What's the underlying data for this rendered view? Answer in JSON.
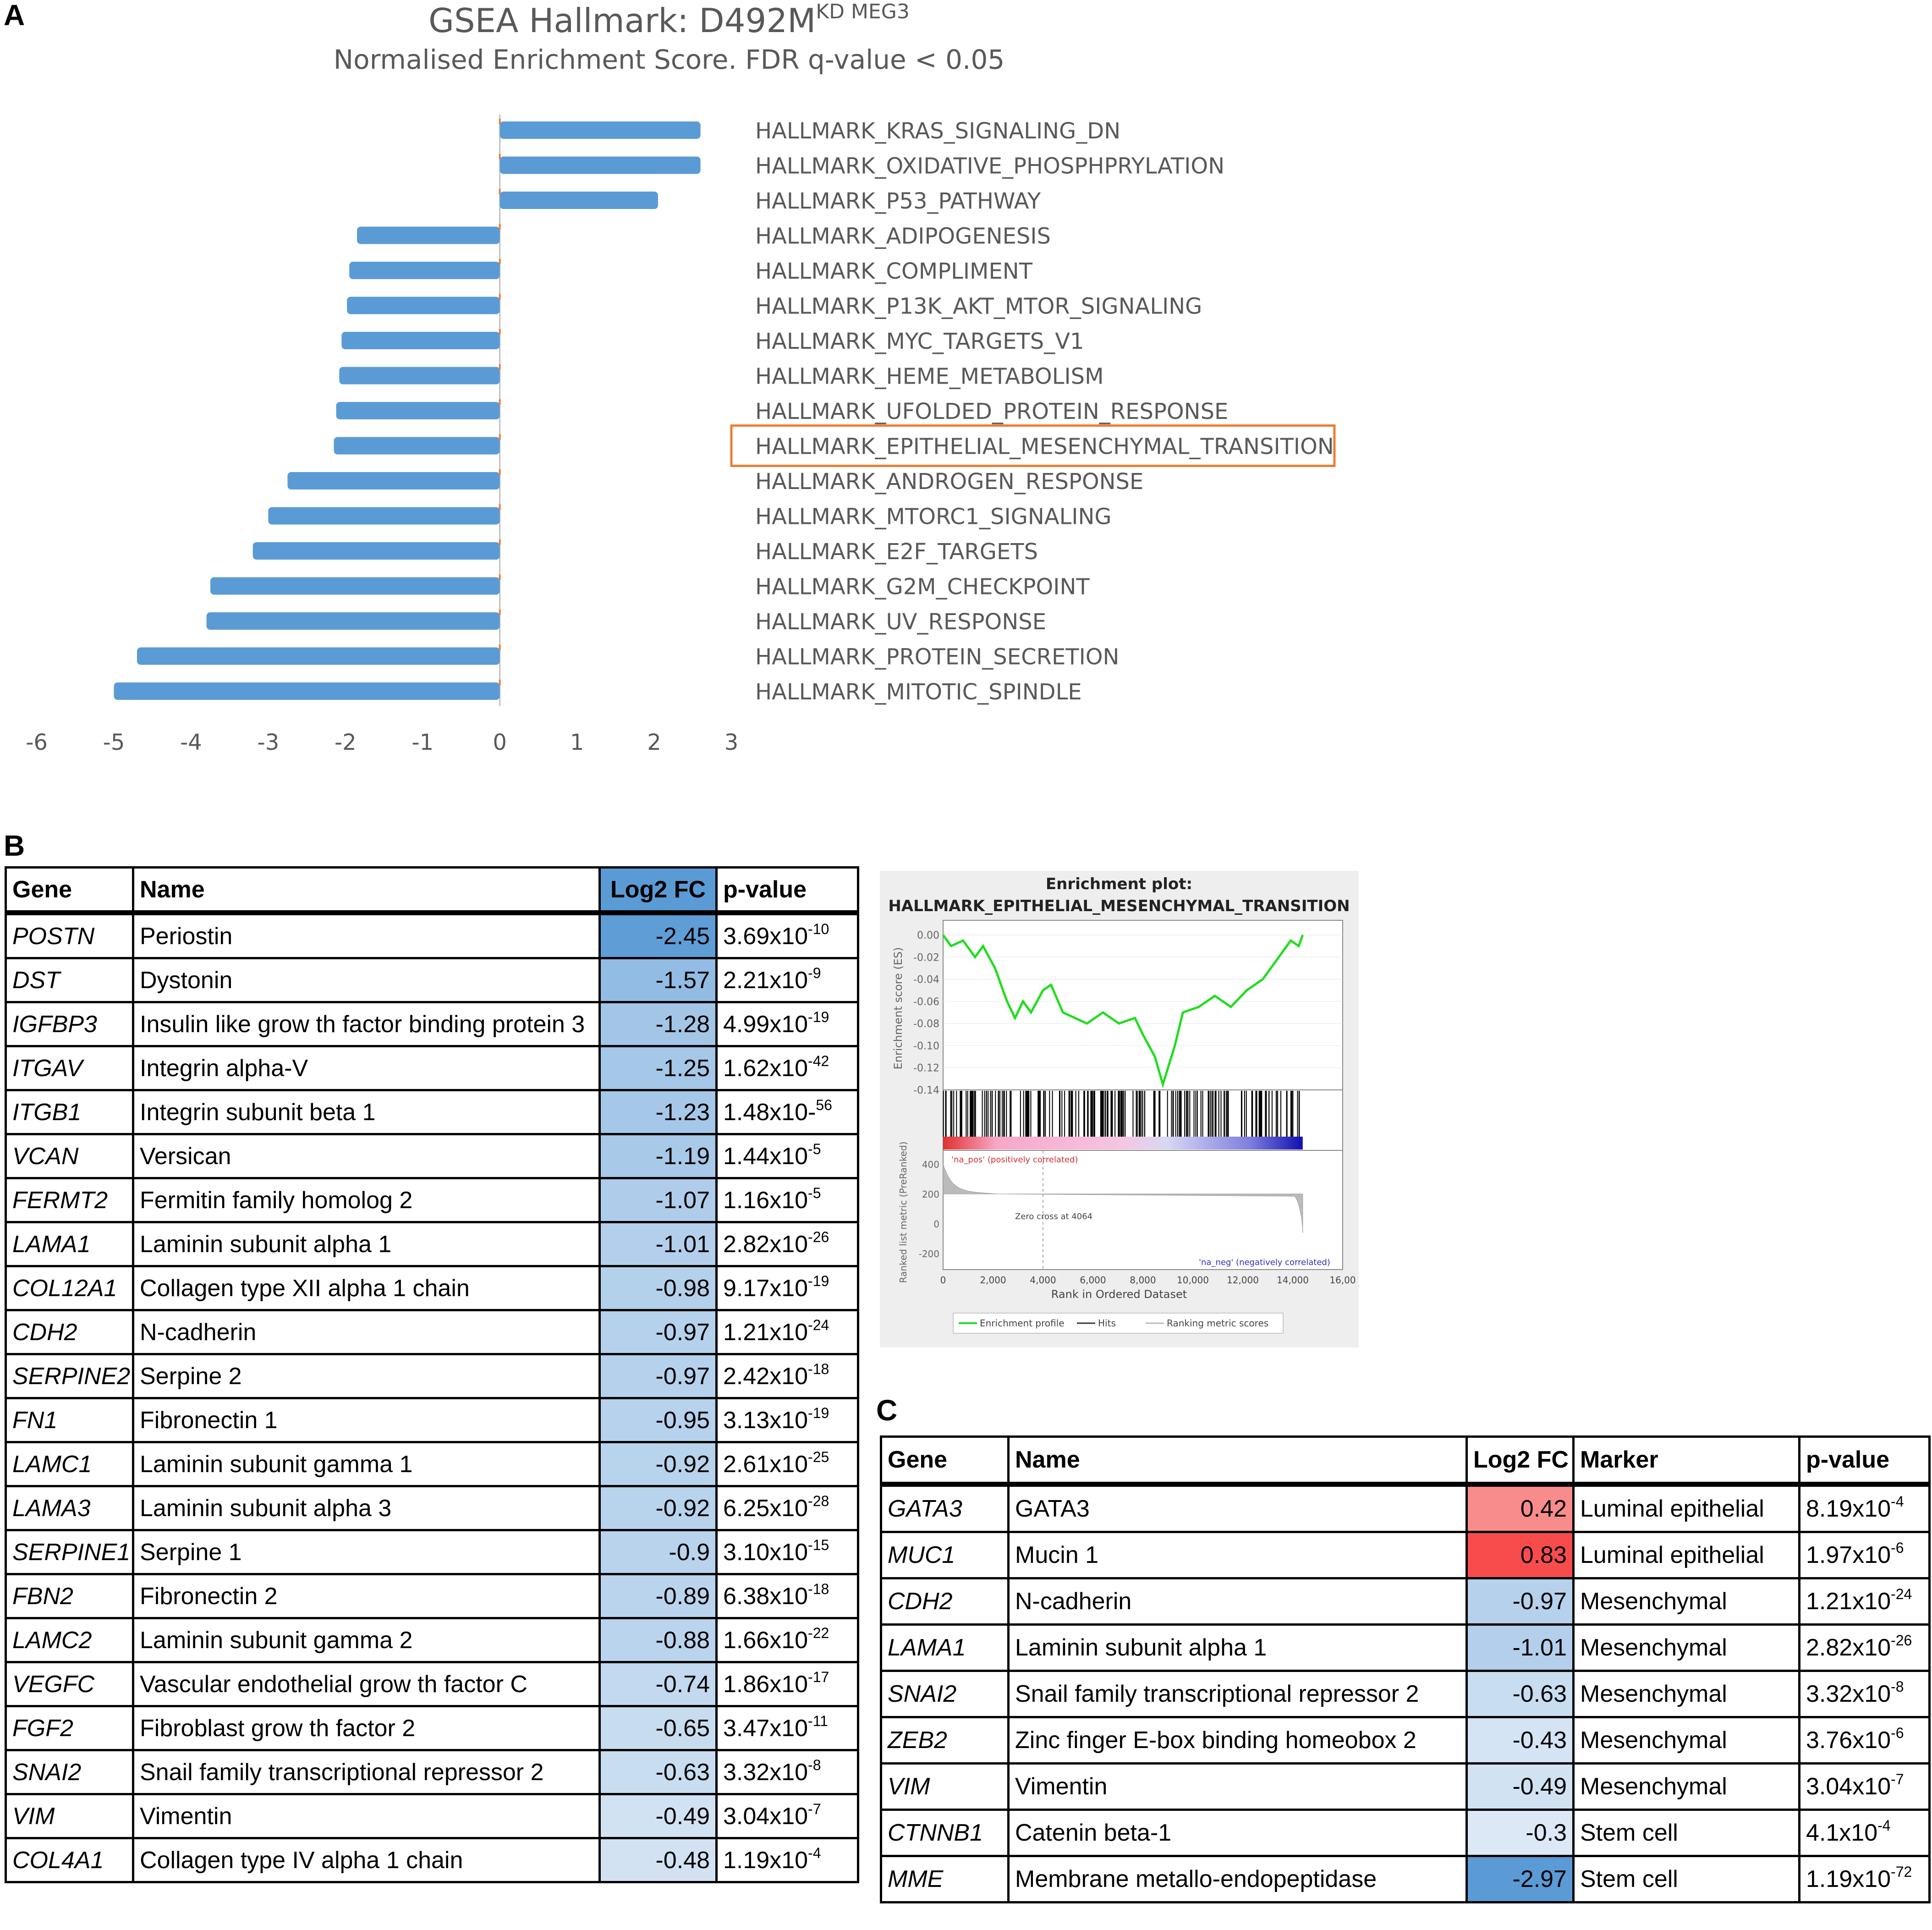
{
  "panel_a": {
    "letter": "A",
    "title_main": "GSEA Hallmark: D492M",
    "title_sup": "KD MEG3",
    "subtitle": "Normalised Enrichment Score. FDR q-value < 0.05",
    "highlighted_item": "HALLMARK_EPITHELIAL_MESENCHYMAL_TRANSITION",
    "colors": {
      "bar": "#5b9bd5",
      "highlight_box": "#ed7d31",
      "zero_tick": "#ed7d31",
      "text": "#595959"
    }
  },
  "chart_data": {
    "type": "bar",
    "orientation": "horizontal",
    "title": "GSEA Hallmark: D492M KD MEG3",
    "subtitle": "Normalised Enrichment Score. FDR q-value < 0.05",
    "categories": [
      "HALLMARK_KRAS_SIGNALING_DN",
      "HALLMARK_OXIDATIVE_PHOSPHPRYLATION",
      "HALLMARK_P53_PATHWAY",
      "HALLMARK_ADIPOGENESIS",
      "HALLMARK_COMPLIMENT",
      "HALLMARK_P13K_AKT_MTOR_SIGNALING",
      "HALLMARK_MYC_TARGETS_V1",
      "HALLMARK_HEME_METABOLISM",
      "HALLMARK_UFOLDED_PROTEIN_RESPONSE",
      "HALLMARK_EPITHELIAL_MESENCHYMAL_TRANSITION",
      "HALLMARK_ANDROGEN_RESPONSE",
      "HALLMARK_MTORC1_SIGNALING",
      "HALLMARK_E2F_TARGETS",
      "HALLMARK_G2M_CHECKPOINT",
      "HALLMARK_UV_RESPONSE",
      "HALLMARK_PROTEIN_SECRETION",
      "HALLMARK_MITOTIC_SPINDLE"
    ],
    "values": [
      2.6,
      2.6,
      2.05,
      -1.85,
      -1.95,
      -1.98,
      -2.05,
      -2.08,
      -2.12,
      -2.15,
      -2.75,
      -3.0,
      -3.2,
      -3.75,
      -3.8,
      -4.7,
      -5.0
    ],
    "xlim": [
      -6,
      3
    ],
    "xticks": [
      "-6",
      "-5",
      "-4",
      "-3",
      "-2",
      "-1",
      "0",
      "1",
      "2",
      "3"
    ],
    "grid": false,
    "legend": "none"
  },
  "panel_b": {
    "letter": "B",
    "headers": [
      "Gene",
      "Name",
      "Log2 FC",
      "p-value"
    ],
    "rows": [
      {
        "gene": "POSTN",
        "name": "Periostin",
        "fc": "-2.45",
        "p_base": "3.69x10",
        "p_exp": "-10"
      },
      {
        "gene": "DST",
        "name": "Dystonin",
        "fc": "-1.57",
        "p_base": "2.21x10",
        "p_exp": "-9"
      },
      {
        "gene": "IGFBP3",
        "name": "Insulin like grow th factor binding protein 3",
        "fc": "-1.28",
        "p_base": "4.99x10",
        "p_exp": "-19"
      },
      {
        "gene": "ITGAV",
        "name": "Integrin alpha-V",
        "fc": "-1.25",
        "p_base": "1.62x10",
        "p_exp": "-42"
      },
      {
        "gene": "ITGB1",
        "name": "Integrin subunit beta 1",
        "fc": "-1.23",
        "p_base": "1.48x10-",
        "p_exp": "56"
      },
      {
        "gene": "VCAN",
        "name": "Versican",
        "fc": "-1.19",
        "p_base": "1.44x10",
        "p_exp": "-5"
      },
      {
        "gene": "FERMT2",
        "name": "Fermitin family homolog 2",
        "fc": "-1.07",
        "p_base": "1.16x10",
        "p_exp": "-5"
      },
      {
        "gene": "LAMA1",
        "name": "Laminin subunit alpha 1",
        "fc": "-1.01",
        "p_base": "2.82x10",
        "p_exp": "-26"
      },
      {
        "gene": "COL12A1",
        "name": "Collagen type XII alpha 1 chain",
        "fc": "-0.98",
        "p_base": "9.17x10",
        "p_exp": "-19"
      },
      {
        "gene": "CDH2",
        "name": "N-cadherin",
        "fc": "-0.97",
        "p_base": "1.21x10",
        "p_exp": "-24"
      },
      {
        "gene": "SERPINE2",
        "name": "Serpine 2",
        "fc": "-0.97",
        "p_base": "2.42x10",
        "p_exp": "-18"
      },
      {
        "gene": "FN1",
        "name": "Fibronectin 1",
        "fc": "-0.95",
        "p_base": "3.13x10",
        "p_exp": "-19"
      },
      {
        "gene": "LAMC1",
        "name": "Laminin subunit gamma 1",
        "fc": "-0.92",
        "p_base": "2.61x10",
        "p_exp": "-25"
      },
      {
        "gene": "LAMA3",
        "name": "Laminin subunit alpha 3",
        "fc": "-0.92",
        "p_base": "6.25x10",
        "p_exp": "-28"
      },
      {
        "gene": "SERPINE1",
        "name": "Serpine 1",
        "fc": "-0.9",
        "p_base": "3.10x10",
        "p_exp": "-15"
      },
      {
        "gene": "FBN2",
        "name": "Fibronectin 2",
        "fc": "-0.89",
        "p_base": "6.38x10",
        "p_exp": "-18"
      },
      {
        "gene": "LAMC2",
        "name": "Laminin subunit gamma 2",
        "fc": "-0.88",
        "p_base": "1.66x10",
        "p_exp": "-22"
      },
      {
        "gene": "VEGFC",
        "name": "Vascular endothelial grow th factor C",
        "fc": "-0.74",
        "p_base": "1.86x10",
        "p_exp": "-17"
      },
      {
        "gene": "FGF2",
        "name": "Fibroblast grow th factor 2",
        "fc": "-0.65",
        "p_base": "3.47x10",
        "p_exp": "-11"
      },
      {
        "gene": "SNAI2",
        "name": "Snail family transcriptional repressor 2",
        "fc": "-0.63",
        "p_base": "3.32x10",
        "p_exp": "-8"
      },
      {
        "gene": "VIM",
        "name": "Vimentin",
        "fc": "-0.49",
        "p_base": "3.04x10",
        "p_exp": "-7"
      },
      {
        "gene": "COL4A1",
        "name": "Collagen type IV alpha 1 chain",
        "fc": "-0.48",
        "p_base": "1.19x10",
        "p_exp": "-4"
      }
    ]
  },
  "enrichment_plot": {
    "title_line1": "Enrichment plot:",
    "title_line2": "HALLMARK_EPITHELIAL_MESENCHYMAL_TRANSITION",
    "y_label_top": "Enrichment score (ES)",
    "y_ticks_top": [
      "0.00",
      "-0.02",
      "-0.04",
      "-0.06",
      "-0.08",
      "-0.10",
      "-0.12",
      "-0.14"
    ],
    "y_label_bottom": "Ranked list metric (PreRanked)",
    "y_ticks_bottom": [
      "400",
      "200",
      "0",
      "-200"
    ],
    "x_label": "Rank in Ordered Dataset",
    "x_ticks": [
      "0",
      "2,000",
      "4,000",
      "6,000",
      "8,000",
      "10,000",
      "12,000",
      "14,000",
      "16,00"
    ],
    "pos_label": "'na_pos' (positively correlated)",
    "neg_label": "'na_neg' (negatively correlated)",
    "zero_cross": "Zero cross at 4064",
    "legend": [
      "Enrichment profile",
      "Hits",
      "Ranking metric scores"
    ],
    "colors": {
      "profile": "#22dd22",
      "pos": "#e03030",
      "neg": "#2020c0",
      "bg": "#eeeeee"
    }
  },
  "panel_c": {
    "letter": "C",
    "headers": [
      "Gene",
      "Name",
      "Log2 FC",
      "Marker",
      "p-value"
    ],
    "rows": [
      {
        "gene": "GATA3",
        "name": "GATA3",
        "fc": "0.42",
        "marker": "Luminal epithelial",
        "p_base": "8.19x10",
        "p_exp": "-4"
      },
      {
        "gene": "MUC1",
        "name": "Mucin 1",
        "fc": "0.83",
        "marker": "Luminal epithelial",
        "p_base": "1.97x10",
        "p_exp": "-6"
      },
      {
        "gene": "CDH2",
        "name": "N-cadherin",
        "fc": "-0.97",
        "marker": "Mesenchymal",
        "p_base": "1.21x10",
        "p_exp": "-24"
      },
      {
        "gene": "LAMA1",
        "name": "Laminin subunit alpha 1",
        "fc": "-1.01",
        "marker": "Mesenchymal",
        "p_base": "2.82x10",
        "p_exp": "-26"
      },
      {
        "gene": "SNAI2",
        "name": "Snail family transcriptional repressor 2",
        "fc": "-0.63",
        "marker": "Mesenchymal",
        "p_base": "3.32x10",
        "p_exp": "-8"
      },
      {
        "gene": "ZEB2",
        "name": "Zinc finger E-box binding homeobox 2",
        "fc": "-0.43",
        "marker": "Mesenchymal",
        "p_base": "3.76x10",
        "p_exp": "-6"
      },
      {
        "gene": "VIM",
        "name": "Vimentin",
        "fc": "-0.49",
        "marker": "Mesenchymal",
        "p_base": "3.04x10",
        "p_exp": "-7"
      },
      {
        "gene": "CTNNB1",
        "name": "Catenin beta-1",
        "fc": "-0.3",
        "marker": "Stem cell",
        "p_base": "4.1x10",
        "p_exp": "-4"
      },
      {
        "gene": "MME",
        "name": "Membrane metallo-endopeptidase",
        "fc": "-2.97",
        "marker": "Stem cell",
        "p_base": "1.19x10",
        "p_exp": "-72"
      }
    ]
  }
}
